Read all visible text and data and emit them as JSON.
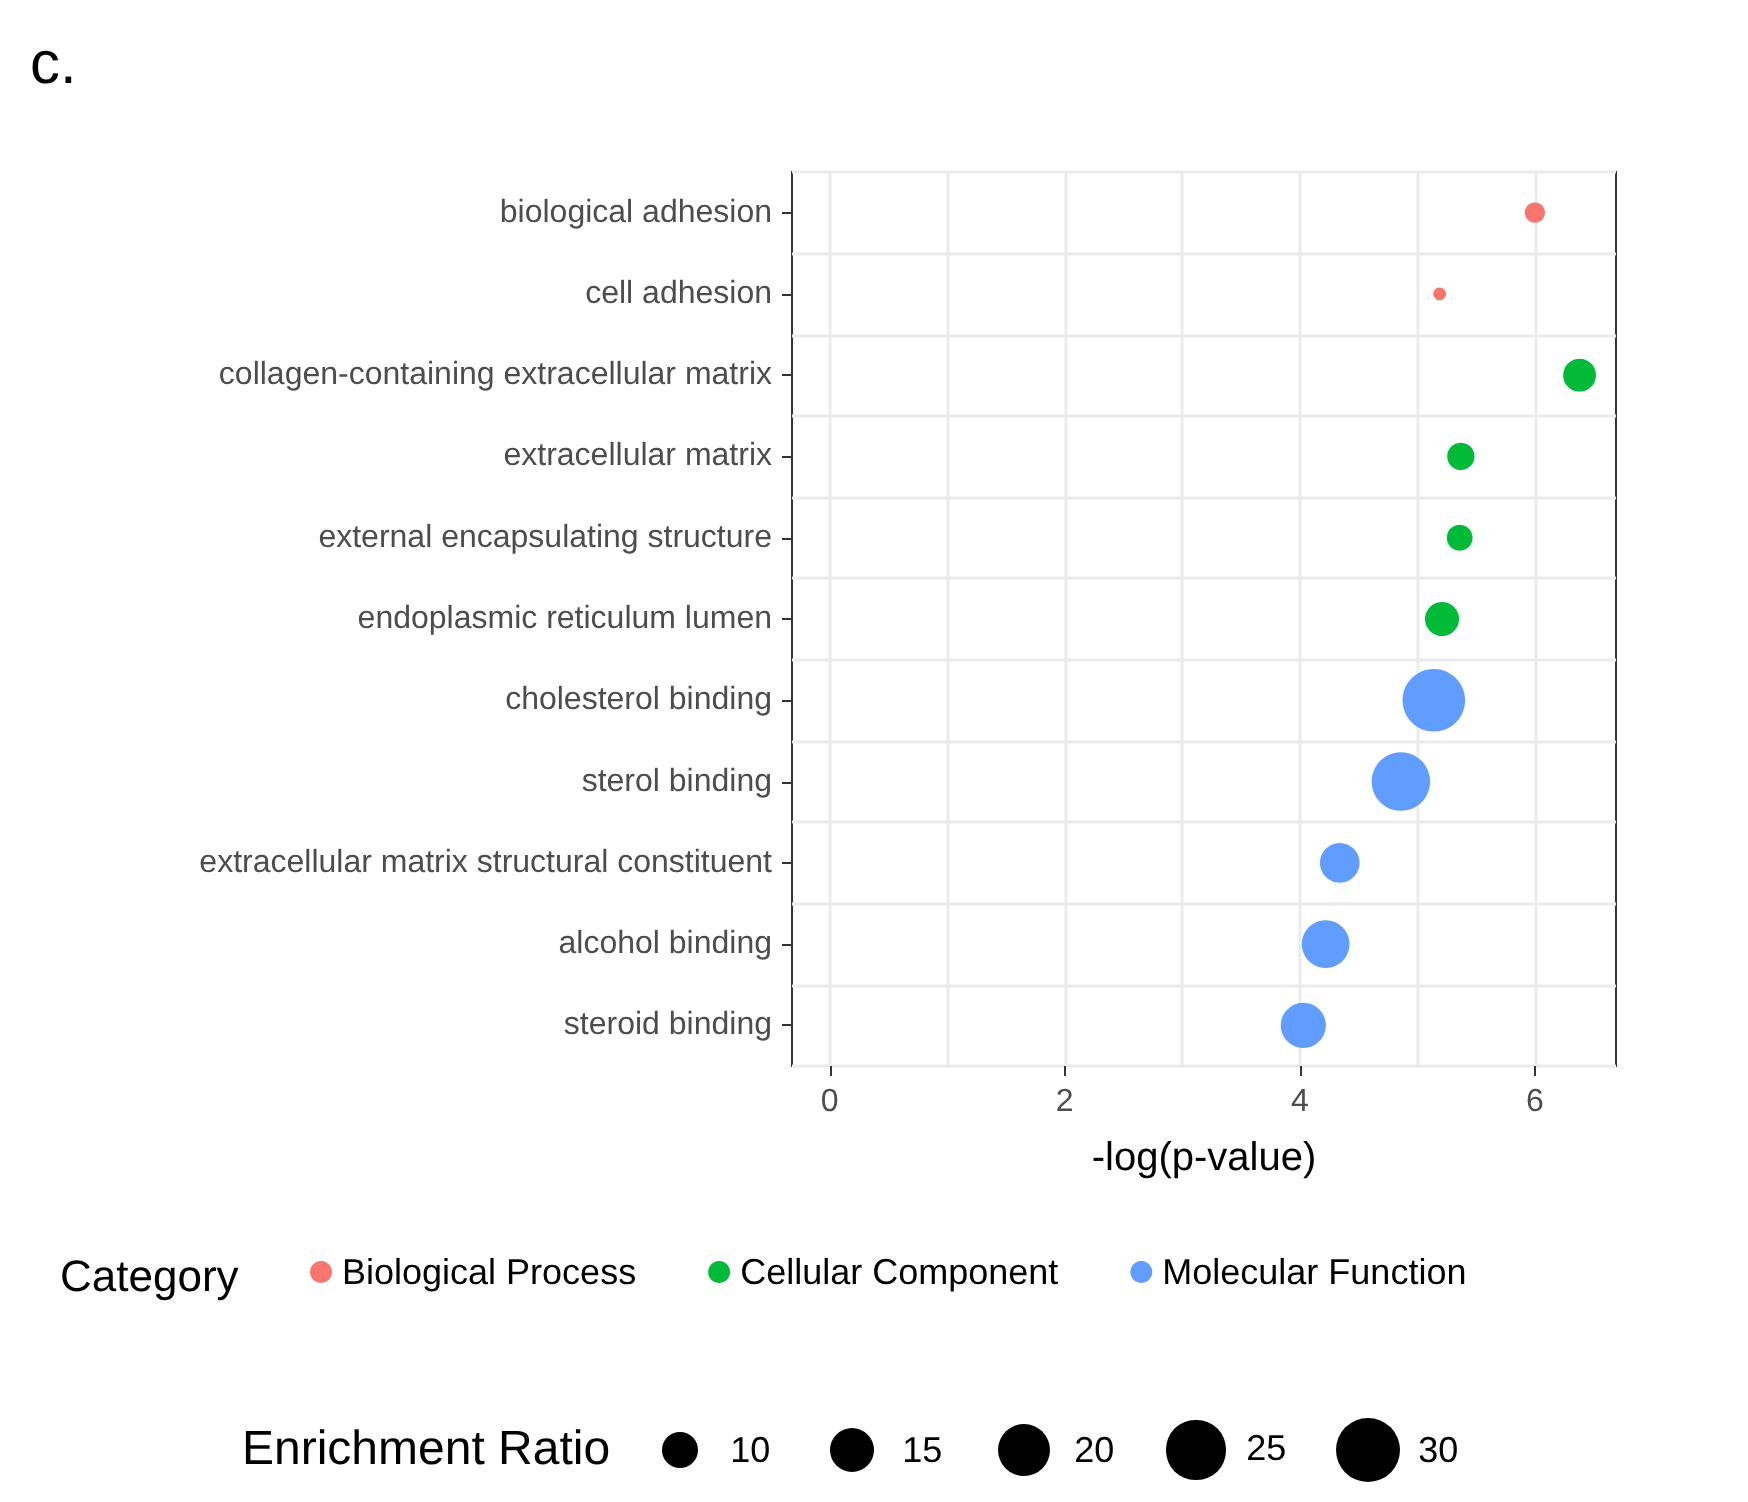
{
  "chart_data": {
    "type": "bubble",
    "title": "c.",
    "xlabel": "-log(p-value)",
    "legend_title": "Category",
    "annotations": [
      "Enrichment Ratio"
    ],
    "categories": [
      "biological adhesion",
      "cell adhesion",
      "collagen-containing extracellular matrix",
      "extracellular matrix",
      "external encapsulating structure",
      "endoplasmic reticulum lumen",
      "cholesterol binding",
      "sterol binding",
      "extracellular matrix structural constituent",
      "alcohol binding",
      "steroid binding"
    ],
    "series": [
      {
        "name": "Biological Process",
        "color": "#f8766d",
        "values": [
          6.0,
          5.19,
          null,
          null,
          null,
          null,
          null,
          null,
          null,
          null,
          null
        ],
        "sizes": [
          3,
          1.2,
          null,
          null,
          null,
          null,
          null,
          null,
          null,
          null,
          null
        ]
      },
      {
        "name": "Cellular Component",
        "color": "#00ba38",
        "values": [
          null,
          null,
          6.38,
          5.37,
          5.36,
          5.21,
          null,
          null,
          null,
          null,
          null
        ],
        "sizes": [
          null,
          null,
          7.9,
          5.5,
          4.9,
          8.5,
          null,
          null,
          null,
          null,
          null
        ]
      },
      {
        "name": "Molecular Function",
        "color": "#619cff",
        "values": [
          null,
          null,
          null,
          null,
          null,
          null,
          5.14,
          4.86,
          4.34,
          4.22,
          4.03
        ],
        "sizes": [
          null,
          null,
          null,
          null,
          null,
          null,
          28.7,
          25.1,
          11.5,
          16.7,
          14.9
        ]
      }
    ],
    "size_legend": [
      10,
      15,
      20,
      25,
      30
    ],
    "xlim": [
      -0.32,
      6.69
    ],
    "xticks": [
      0,
      {
        "value": 1,
        "label": null
      },
      2,
      {
        "value": 3,
        "label": null
      },
      4,
      {
        "value": 5,
        "label": null
      },
      6
    ],
    "grid": true,
    "legend": "bottom",
    "marker": "circle",
    "orientation": "horizontal"
  }
}
